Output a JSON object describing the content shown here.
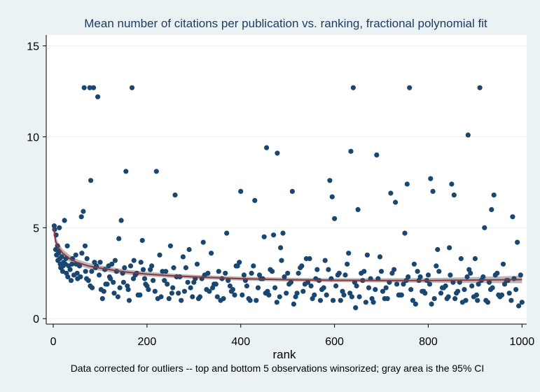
{
  "chart_data": {
    "type": "scatter",
    "title": "Mean number of citations per publication vs. ranking, fractional polynomial fit",
    "xlabel": "rank",
    "ylabel": "",
    "note": "Data corrected for outliers -- top and bottom 5 observations winsorized; gray area is the 95% CI",
    "xlim": [
      -15,
      1010
    ],
    "ylim": [
      -0.3,
      15.6
    ],
    "xticks": [
      0,
      200,
      400,
      600,
      800,
      1000
    ],
    "yticks": [
      0,
      5,
      10,
      15
    ],
    "xtick_labels": [
      "0",
      "200",
      "400",
      "600",
      "800",
      "1000"
    ],
    "ytick_labels": [
      "0",
      "5",
      "10",
      "15"
    ],
    "grid": {
      "x": false,
      "y": true
    },
    "legend": "none",
    "colors": {
      "background": "#eaf2f3",
      "plot_area": "#ffffff",
      "points": "#1a476f",
      "fit_line": "#90353b",
      "ci_band": "#b8b8b8",
      "title": "#1e3a5f"
    },
    "fit": {
      "type": "fractional polynomial",
      "x": [
        1,
        5,
        10,
        20,
        35,
        50,
        75,
        100,
        150,
        200,
        250,
        300,
        400,
        500,
        600,
        700,
        800,
        900,
        1000
      ],
      "y": [
        5.0,
        4.25,
        3.95,
        3.6,
        3.3,
        3.1,
        2.9,
        2.78,
        2.58,
        2.45,
        2.36,
        2.3,
        2.2,
        2.14,
        2.11,
        2.1,
        2.1,
        2.12,
        2.15
      ],
      "ci_low": [
        4.6,
        3.95,
        3.7,
        3.4,
        3.12,
        2.95,
        2.75,
        2.63,
        2.45,
        2.33,
        2.25,
        2.19,
        2.09,
        2.04,
        2.01,
        1.99,
        1.98,
        1.96,
        1.95
      ],
      "ci_high": [
        5.45,
        4.6,
        4.22,
        3.82,
        3.5,
        3.27,
        3.06,
        2.93,
        2.72,
        2.58,
        2.48,
        2.41,
        2.31,
        2.25,
        2.22,
        2.22,
        2.23,
        2.29,
        2.36
      ]
    },
    "scatter": {
      "x": [
        2,
        3,
        5,
        6,
        7,
        9,
        10,
        11,
        13,
        14,
        15,
        17,
        18,
        20,
        22,
        24,
        26,
        28,
        30,
        33,
        36,
        40,
        44,
        48,
        52,
        56,
        60,
        64,
        66,
        68,
        72,
        75,
        78,
        80,
        83,
        86,
        90,
        95,
        100,
        105,
        110,
        115,
        120,
        125,
        130,
        135,
        140,
        145,
        150,
        155,
        160,
        165,
        168,
        172,
        178,
        185,
        190,
        195,
        200,
        210,
        220,
        230,
        240,
        250,
        255,
        260,
        270,
        280,
        290,
        300,
        310,
        320,
        330,
        340,
        350,
        360,
        370,
        380,
        390,
        400,
        410,
        420,
        430,
        440,
        450,
        455,
        460,
        470,
        478,
        485,
        490,
        500,
        510,
        520,
        530,
        540,
        550,
        560,
        570,
        580,
        590,
        595,
        600,
        610,
        620,
        630,
        635,
        640,
        645,
        650,
        660,
        670,
        680,
        690,
        700,
        710,
        720,
        730,
        740,
        750,
        755,
        760,
        770,
        780,
        790,
        800,
        805,
        810,
        820,
        830,
        840,
        845,
        850,
        855,
        860,
        870,
        880,
        885,
        890,
        900,
        905,
        910,
        920,
        930,
        935,
        940,
        950,
        960,
        970,
        980,
        990,
        1000,
        12,
        21,
        31,
        41,
        51,
        61,
        71,
        82,
        92,
        102,
        112,
        122,
        132,
        142,
        152,
        162,
        175,
        187,
        197,
        207,
        217,
        227,
        237,
        247,
        257,
        267,
        277,
        287,
        297,
        307,
        317,
        327,
        337,
        347,
        357,
        367,
        377,
        387,
        397,
        407,
        417,
        427,
        437,
        447,
        457,
        467,
        477,
        487,
        497,
        507,
        517,
        527,
        537,
        547,
        557,
        567,
        577,
        587,
        597,
        607,
        617,
        627,
        637,
        647,
        657,
        667,
        677,
        687,
        697,
        707,
        717,
        727,
        737,
        747,
        757,
        767,
        777,
        787,
        797,
        807,
        817,
        827,
        837,
        847,
        857,
        867,
        877,
        887,
        897,
        907,
        917,
        927,
        937,
        947,
        957,
        967,
        977,
        987,
        997,
        16,
        27,
        38,
        49,
        58,
        69,
        79,
        88,
        98,
        108,
        118,
        128,
        138,
        148,
        158,
        171,
        181,
        192,
        203,
        213,
        223,
        233,
        243,
        253,
        263,
        273,
        283,
        293,
        303,
        313,
        323,
        333,
        343,
        353,
        363,
        373,
        383,
        393,
        403,
        413,
        423,
        433,
        443,
        453,
        463,
        473,
        483,
        493,
        503,
        513,
        523,
        533,
        543,
        553,
        563,
        573,
        583,
        593,
        603,
        613,
        623,
        633,
        643,
        653,
        663,
        673,
        683,
        693,
        703,
        713,
        723,
        733,
        743,
        753,
        763,
        773,
        783,
        793,
        803,
        813,
        823,
        833,
        843,
        853,
        863,
        873,
        883,
        893,
        903,
        913,
        923,
        933,
        943,
        953,
        963,
        973,
        983,
        993
      ],
      "y": [
        5.1,
        4.9,
        3.8,
        4.6,
        3.5,
        4.0,
        3.2,
        3.6,
        5.0,
        3.3,
        3.0,
        2.8,
        3.4,
        2.6,
        3.1,
        5.4,
        3.0,
        2.5,
        4.0,
        2.9,
        2.7,
        3.0,
        2.4,
        3.5,
        2.2,
        2.9,
        5.6,
        5.9,
        12.7,
        4.0,
        3.3,
        2.1,
        12.7,
        7.6,
        1.7,
        12.7,
        2.8,
        12.2,
        3.1,
        1.1,
        2.7,
        1.9,
        2.3,
        3.0,
        1.4,
        2.6,
        4.4,
        5.4,
        2.0,
        8.1,
        1.6,
        2.9,
        12.7,
        3.2,
        2.5,
        1.3,
        4.3,
        2.2,
        1.8,
        2.9,
        8.1,
        1.2,
        2.6,
        4.0,
        1.7,
        6.8,
        2.3,
        1.5,
        3.8,
        2.0,
        1.1,
        4.2,
        2.5,
        1.7,
        1.2,
        2.2,
        4.7,
        1.5,
        2.9,
        7.0,
        2.1,
        1.0,
        6.5,
        2.4,
        4.5,
        9.4,
        1.3,
        4.6,
        9.1,
        3.9,
        4.7,
        2.5,
        7.0,
        1.4,
        2.9,
        3.3,
        1.8,
        2.2,
        1.0,
        3.2,
        7.6,
        6.7,
        5.5,
        2.5,
        1.3,
        3.6,
        9.2,
        12.7,
        0.6,
        6.0,
        2.1,
        3.5,
        1.1,
        9.0,
        2.6,
        1.7,
        6.9,
        6.4,
        1.3,
        4.7,
        7.4,
        12.7,
        3.0,
        2.1,
        1.5,
        2.4,
        7.7,
        7.0,
        3.8,
        1.7,
        1.1,
        3.9,
        7.4,
        6.8,
        1.4,
        3.3,
        1.0,
        10.1,
        2.5,
        3.3,
        1.0,
        12.7,
        5.0,
        2.0,
        6.0,
        6.8,
        1.3,
        3.0,
        2.1,
        5.6,
        4.2,
        0.9,
        3.7,
        2.9,
        2.3,
        3.3,
        2.5,
        3.6,
        2.2,
        2.6,
        2.9,
        1.6,
        1.9,
        2.2,
        3.2,
        1.7,
        2.8,
        1.0,
        2.4,
        3.1,
        1.9,
        2.7,
        1.5,
        3.5,
        2.1,
        1.1,
        2.8,
        1.4,
        3.4,
        2.0,
        1.2,
        3.0,
        2.2,
        1.6,
        3.6,
        1.9,
        1.0,
        2.5,
        1.8,
        1.3,
        3.1,
        2.4,
        1.1,
        2.9,
        1.7,
        2.2,
        1.5,
        2.6,
        0.9,
        3.2,
        1.4,
        2.0,
        1.2,
        2.8,
        1.9,
        3.3,
        1.3,
        2.1,
        1.7,
        2.7,
        1.0,
        2.4,
        1.5,
        3.0,
        1.2,
        1.8,
        2.5,
        0.9,
        2.2,
        1.6,
        3.4,
        1.1,
        2.0,
        2.7,
        1.3,
        1.9,
        2.3,
        1.0,
        2.6,
        1.5,
        2.1,
        0.8,
        2.9,
        1.4,
        1.8,
        2.4,
        1.1,
        2.0,
        1.6,
        2.7,
        1.2,
        1.9,
        2.3,
        0.9,
        1.7,
        2.5,
        1.3,
        2.1,
        1.0,
        1.6,
        2.4,
        2.8,
        3.3,
        2.1,
        3.0,
        2.3,
        2.6,
        1.8,
        3.1,
        2.4,
        1.5,
        2.9,
        2.0,
        1.2,
        2.5,
        1.8,
        2.2,
        1.3,
        2.7,
        1.6,
        2.1,
        1.1,
        2.6,
        1.9,
        1.4,
        2.3,
        1.0,
        2.8,
        1.7,
        2.2,
        1.2,
        2.4,
        1.5,
        1.9,
        2.6,
        1.1,
        2.1,
        1.6,
        2.9,
        1.3,
        1.8,
        2.5,
        1.0,
        2.2,
        1.4,
        2.7,
        1.7,
        1.2,
        2.3,
        1.9,
        0.8,
        2.5,
        1.5,
        2.0,
        1.1,
        2.7,
        1.6,
        1.3,
        2.2,
        1.8,
        1.0,
        2.4,
        1.4,
        2.0,
        1.2,
        2.6,
        1.7,
        0.9,
        2.2,
        1.5,
        1.1,
        2.5,
        1.9,
        1.3,
        2.1,
        1.6,
        0.8,
        2.3,
        1.4,
        1.9,
        1.1,
        2.6,
        1.7,
        1.2,
        2.0,
        1.5,
        0.9,
        2.3,
        1.8,
        1.3,
        2.1,
        1.0,
        1.6,
        2.4,
        1.2,
        1.9,
        1.4,
        2.2,
        0.7
      ]
    }
  }
}
